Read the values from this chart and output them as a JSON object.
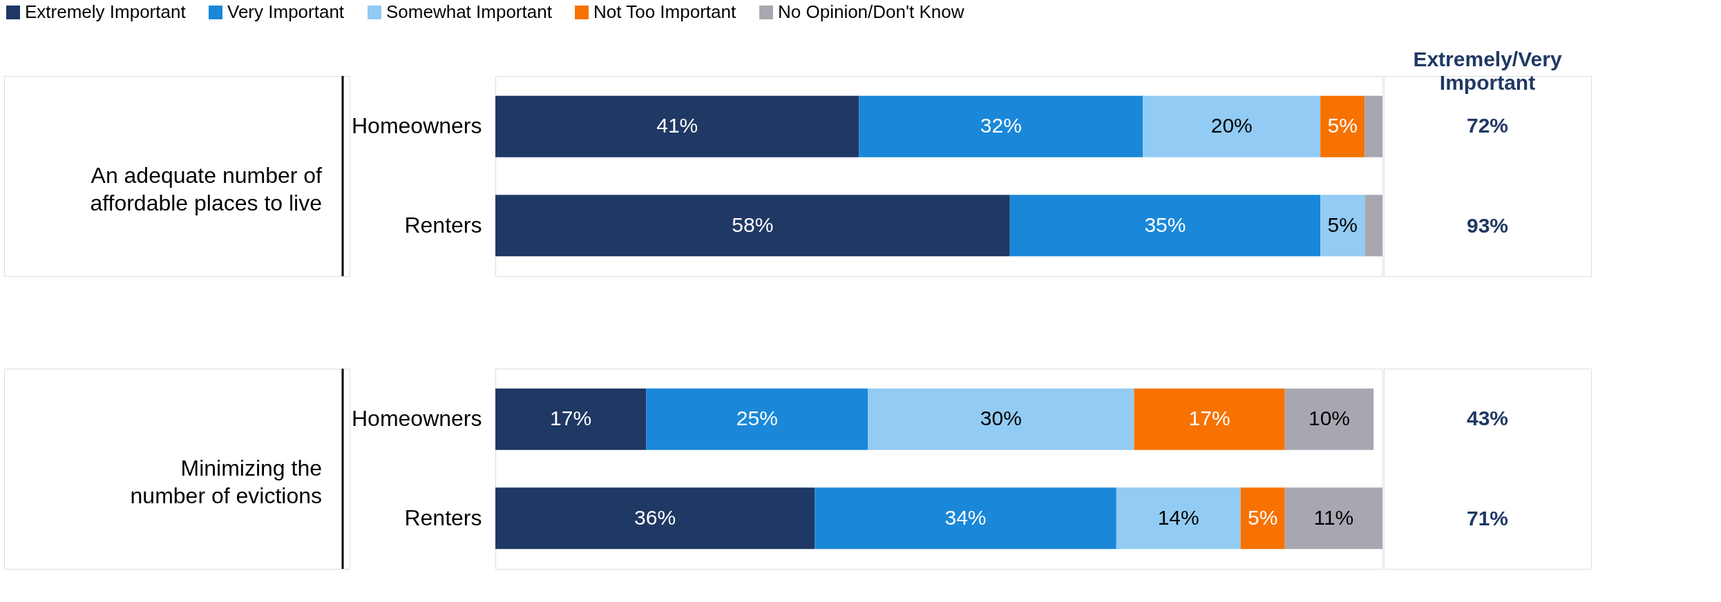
{
  "chart_data": [
    {
      "type": "bar",
      "orientation": "horizontal",
      "stacked": true,
      "legend": "top",
      "ylabel": "An adequate number of affordable places to live",
      "categories": [
        "Homeowners",
        "Renters"
      ],
      "series": [
        {
          "name": "Extremely Important",
          "color": "#1f3864",
          "values": [
            41,
            58
          ],
          "value_labels": [
            "41%",
            "58%"
          ]
        },
        {
          "name": "Very Important",
          "color": "#1a87d8",
          "values": [
            32,
            35
          ],
          "value_labels": [
            "32%",
            "35%"
          ]
        },
        {
          "name": "Somewhat Important",
          "color": "#92cbf3",
          "values": [
            20,
            5
          ],
          "value_labels": [
            "20%",
            "5%"
          ]
        },
        {
          "name": "Not Too Important",
          "color": "#f77200",
          "values": [
            5,
            0
          ],
          "value_labels": [
            "5%",
            null
          ]
        },
        {
          "name": "No Opinion/Don't Know",
          "color": "#a7a7b1",
          "values": [
            2,
            2
          ],
          "value_labels": [
            null,
            null
          ]
        }
      ],
      "annotations": [
        "Extremely/Very Important",
        "72%",
        "93%"
      ]
    },
    {
      "type": "bar",
      "orientation": "horizontal",
      "stacked": true,
      "legend": false,
      "ylabel": "Minimizing the number of evictions",
      "categories": [
        "Homeowners",
        "Renters"
      ],
      "series": [
        {
          "color": "#1f3864",
          "values": [
            17,
            36
          ],
          "value_labels": [
            "17%",
            "36%"
          ]
        },
        {
          "color": "#1a87d8",
          "values": [
            25,
            34
          ],
          "value_labels": [
            "25%",
            "34%"
          ]
        },
        {
          "color": "#92cbf3",
          "values": [
            30,
            14
          ],
          "value_labels": [
            "30%",
            "14%"
          ]
        },
        {
          "color": "#f77200",
          "values": [
            17,
            5
          ],
          "value_labels": [
            "17%",
            "5%"
          ]
        },
        {
          "color": "#a7a7b1",
          "values": [
            10,
            11
          ],
          "value_labels": [
            "10%",
            "11%"
          ]
        }
      ],
      "annotations": [
        "43%",
        "71%"
      ]
    }
  ]
}
